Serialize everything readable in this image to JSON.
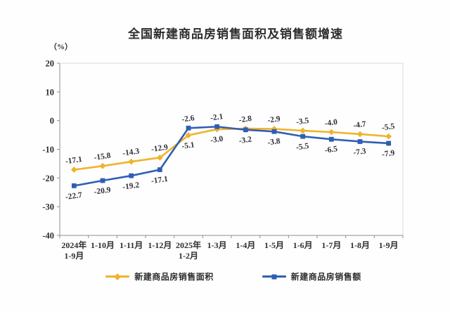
{
  "page": {
    "background_color": "#fefefe"
  },
  "chart_data": {
    "type": "line",
    "title": "全国新建商品房销售面积及销售额增速",
    "unit_label": "（%）",
    "categories": [
      "2024年\n1-9月",
      "1-10月",
      "1-11月",
      "1-12月",
      "2025年\n1-2月",
      "1-3月",
      "1-4月",
      "1-5月",
      "1-6月",
      "1-7月",
      "1-8月",
      "1-9月"
    ],
    "series": [
      {
        "name": "新建商品房销售面积",
        "color": "#F0B32B",
        "marker": "diamond",
        "values": [
          -17.1,
          -15.8,
          -14.3,
          -12.9,
          -5.1,
          -3.0,
          -2.8,
          -2.9,
          -3.5,
          -4.0,
          -4.7,
          -5.5
        ]
      },
      {
        "name": "新建商品房销售额",
        "color": "#2F5FB4",
        "marker": "square",
        "values": [
          -22.7,
          -20.9,
          -19.2,
          -17.1,
          -2.6,
          -2.1,
          -3.2,
          -3.8,
          -5.5,
          -6.5,
          -7.3,
          -7.9
        ]
      }
    ],
    "ylim": [
      -40,
      20
    ],
    "yticks": [
      20,
      10,
      0,
      -10,
      -20,
      -30,
      -40
    ],
    "grid": false,
    "data_labels": true,
    "data_label_rotation_deg": -8,
    "legend_position": "bottom",
    "axis_color": "#8f8f8f",
    "plot_border_color": "#d9d9d9",
    "text_color": "#2e2e2e"
  }
}
